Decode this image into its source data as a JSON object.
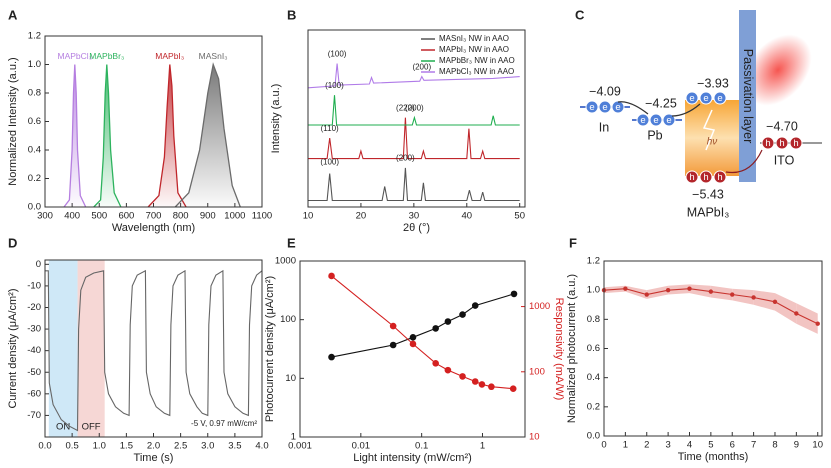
{
  "chart_data": [
    {
      "type": "area",
      "panel": "A",
      "xlabel": "Wavelength (nm)",
      "ylabel": "Normalized Intensity (a.u.)",
      "xlim": [
        300,
        1100
      ],
      "xticks": [
        300,
        400,
        500,
        600,
        700,
        800,
        900,
        1000,
        1100
      ],
      "ylim": [
        0,
        1.2
      ],
      "yticks": [
        {
          "value": 0,
          "label": "0.0"
        },
        0.2,
        0.4,
        0.6,
        0.8,
        {
          "value": 1,
          "label": "1.0"
        },
        1.2
      ],
      "legend": "at-peak",
      "series": [
        {
          "name": "MAPbCl₃",
          "color": "#b57ee0",
          "x": [
            370,
            390,
            400,
            405,
            410,
            415,
            420,
            430,
            450
          ],
          "values": [
            0,
            0.05,
            0.4,
            0.8,
            1.0,
            0.8,
            0.4,
            0.08,
            0
          ]
        },
        {
          "name": "MAPbBr₃",
          "color": "#2db35e",
          "x": [
            480,
            505,
            515,
            522,
            528,
            534,
            542,
            555,
            580
          ],
          "values": [
            0,
            0.05,
            0.35,
            0.8,
            1.0,
            0.8,
            0.4,
            0.1,
            0
          ]
        },
        {
          "name": "MAPbI₃",
          "color": "#c0262b",
          "x": [
            680,
            720,
            740,
            750,
            760,
            768,
            775,
            790,
            820
          ],
          "values": [
            0,
            0.08,
            0.35,
            0.7,
            1.0,
            0.85,
            0.5,
            0.1,
            0
          ]
        },
        {
          "name": "MASnI₃",
          "color": "#6b6b6b",
          "x": [
            780,
            830,
            870,
            900,
            920,
            940,
            960,
            990,
            1020
          ],
          "values": [
            0,
            0.1,
            0.4,
            0.8,
            1.0,
            0.9,
            0.55,
            0.15,
            0
          ]
        }
      ]
    },
    {
      "type": "line",
      "panel": "B",
      "xlabel": "2θ (°)",
      "ylabel": "Intensity (a.u.)",
      "xlim": [
        10,
        51
      ],
      "xticks": [
        10,
        20,
        30,
        40,
        50
      ],
      "ylim": [
        0,
        9.5
      ],
      "legend": "top-right",
      "series": [
        {
          "name": "MASnI₃ NW in AAO",
          "color": "#555555",
          "x": [
            10,
            13.6,
            14.1,
            14.6,
            24,
            24.5,
            25,
            28,
            28.4,
            28.8,
            31.4,
            31.8,
            32.2,
            40,
            40.5,
            41,
            42.6,
            43,
            43.4,
            50
          ],
          "values": [
            0.35,
            0.35,
            1.8,
            0.35,
            0.35,
            1.1,
            0.35,
            0.35,
            2.1,
            0.35,
            0.35,
            1.3,
            0.35,
            0.35,
            0.9,
            0.35,
            0.35,
            0.8,
            0.35,
            0.35
          ]
        },
        {
          "name": "MAPbI₃ NW in AAO",
          "color": "#c0262b",
          "x": [
            10,
            13.6,
            14.1,
            14.6,
            19.6,
            20,
            20.4,
            28,
            28.4,
            28.8,
            31.4,
            31.8,
            32.2,
            40,
            40.4,
            40.8,
            42.6,
            43,
            43.4,
            50
          ],
          "values": [
            2.6,
            2.6,
            3.7,
            2.6,
            2.6,
            3.0,
            2.6,
            2.6,
            4.8,
            2.6,
            2.6,
            3.0,
            2.6,
            2.6,
            4.2,
            2.6,
            2.6,
            3.0,
            2.6,
            2.6
          ]
        },
        {
          "name": "MAPbBr₃ NW in AAO",
          "color": "#1fae4f",
          "x": [
            10,
            14.6,
            15,
            15.4,
            29.7,
            30.1,
            30.5,
            44.6,
            45,
            45.4,
            50
          ],
          "values": [
            4.4,
            4.4,
            6.0,
            4.4,
            4.4,
            4.8,
            4.4,
            4.4,
            4.9,
            4.4,
            4.4
          ]
        },
        {
          "name": "MAPbCl₃ NW in AAO",
          "color": "#b07be8",
          "x": [
            10,
            15.1,
            15.5,
            15.9,
            21.6,
            22,
            22.4,
            31.1,
            31.5,
            31.9,
            45,
            50
          ],
          "values": [
            6.4,
            6.5,
            7.7,
            6.55,
            6.6,
            6.95,
            6.65,
            6.75,
            7.0,
            6.8,
            6.9,
            7.0
          ]
        }
      ],
      "annotations": [
        {
          "text": "(100)",
          "x": 15.5,
          "y": 8.2
        },
        {
          "text": "(200)",
          "x": 31.5,
          "y": 7.5
        },
        {
          "text": "(100)",
          "x": 15,
          "y": 6.5
        },
        {
          "text": "(200)",
          "x": 30.1,
          "y": 5.3
        },
        {
          "text": "(110)",
          "x": 14.1,
          "y": 4.2
        },
        {
          "text": "(220)",
          "x": 28.4,
          "y": 5.3
        },
        {
          "text": "(100)",
          "x": 14.1,
          "y": 2.4
        },
        {
          "text": "(200)",
          "x": 28.4,
          "y": 2.6
        }
      ]
    },
    {
      "type": "line",
      "panel": "D",
      "xlabel": "Time (s)",
      "ylabel": "Current density (μA/cm²)",
      "xlim": [
        0,
        4
      ],
      "xticks": [
        {
          "value": 0,
          "label": "0.0"
        },
        0.5,
        {
          "value": 1,
          "label": "1.0"
        },
        1.5,
        {
          "value": 2,
          "label": "2.0"
        },
        2.5,
        {
          "value": 3,
          "label": "3.0"
        },
        3.5,
        {
          "value": 4,
          "label": "4.0"
        }
      ],
      "ylim": [
        -80,
        2
      ],
      "yticks": [
        -70,
        -60,
        -50,
        -40,
        -30,
        -20,
        -10,
        0
      ],
      "shaded": [
        {
          "label": "ON",
          "x": [
            0.07,
            0.6
          ],
          "color": "#cfe8f7"
        },
        {
          "label": "OFF",
          "x": [
            0.6,
            1.1
          ],
          "color": "#f6d7d5"
        }
      ],
      "annotations": [
        {
          "text": "-5 V, 0.97 mW/cm²",
          "x": 3.3,
          "y": -74
        }
      ],
      "series": [
        {
          "color": "#666666",
          "x": [
            0,
            0.06,
            0.08,
            0.15,
            0.3,
            0.45,
            0.6,
            0.62,
            0.66,
            0.75,
            0.9,
            1.08,
            1.1,
            1.17,
            1.3,
            1.45,
            1.55,
            1.57,
            1.61,
            1.7,
            1.85,
            1.87,
            1.94,
            2.05,
            2.2,
            2.3,
            2.32,
            2.36,
            2.45,
            2.58,
            2.6,
            2.67,
            2.8,
            2.9,
            3.0,
            3.02,
            3.06,
            3.15,
            3.28,
            3.3,
            3.37,
            3.5,
            3.65,
            3.75,
            3.77,
            3.81,
            3.9,
            4.0
          ],
          "values": [
            -3,
            -3,
            -55,
            -65,
            -72,
            -75,
            -77,
            -30,
            -12,
            -6,
            -4,
            -3,
            -50,
            -60,
            -66,
            -69,
            -70,
            -28,
            -10,
            -5,
            -3,
            -50,
            -60,
            -66,
            -69,
            -70,
            -28,
            -10,
            -5,
            -3,
            -50,
            -60,
            -66,
            -69,
            -70,
            -28,
            -10,
            -5,
            -3,
            -50,
            -60,
            -66,
            -69,
            -70,
            -28,
            -10,
            -5,
            -3
          ]
        }
      ]
    },
    {
      "type": "line",
      "panel": "E",
      "xlabel": "Light intensity (mW/cm²)",
      "ylabel": "Photocurrent density (μA/cm²)",
      "y2label": "Responsivity (mA/W)",
      "xlog": true,
      "ylog": true,
      "y2log": true,
      "xlim": [
        0.001,
        5
      ],
      "xticks": [
        0.001,
        0.01,
        0.1,
        1
      ],
      "ylim": [
        1,
        1000
      ],
      "yticks": [
        1,
        10,
        100,
        1000
      ],
      "y2lim": [
        10,
        5000
      ],
      "y2ticks": [
        10,
        100,
        1000
      ],
      "markers": true,
      "series": [
        {
          "color": "#111111",
          "x": [
            0.0033,
            0.034,
            0.072,
            0.17,
            0.27,
            0.47,
            0.76,
            3.3
          ],
          "values": [
            23,
            37,
            50,
            71,
            93,
            122,
            174,
            275
          ]
        },
        {
          "color": "#d42020",
          "axis": "y2",
          "x": [
            0.0033,
            0.034,
            0.072,
            0.17,
            0.27,
            0.47,
            0.76,
            0.98,
            1.4,
            3.2
          ],
          "values": [
            2950,
            503,
            267,
            135,
            106,
            85,
            71,
            64,
            59,
            55
          ]
        }
      ]
    },
    {
      "type": "line",
      "panel": "F",
      "xlabel": "Time (months)",
      "ylabel": "Normalized photocurrent (a.u.)",
      "xlim": [
        0,
        10.2
      ],
      "xticks": [
        0,
        1,
        2,
        3,
        4,
        5,
        6,
        7,
        8,
        9,
        10
      ],
      "ylim": [
        0,
        1.2
      ],
      "yticks": [
        {
          "value": 0,
          "label": "0.0"
        },
        0.2,
        0.4,
        0.6,
        0.8,
        {
          "value": 1,
          "label": "1.0"
        },
        1.2
      ],
      "markers": true,
      "series": [
        {
          "color": "#c8342f",
          "band_color": "#f2c4c2",
          "x": [
            0,
            1,
            2,
            3,
            4,
            5,
            6,
            7,
            8,
            9,
            10
          ],
          "values": [
            1.0,
            1.01,
            0.97,
            1.0,
            1.01,
            0.99,
            0.97,
            0.95,
            0.92,
            0.84,
            0.77
          ],
          "errors": [
            0.02,
            0.02,
            0.03,
            0.03,
            0.03,
            0.04,
            0.04,
            0.05,
            0.06,
            0.07,
            0.07
          ]
        }
      ]
    }
  ],
  "diagram": {
    "panel": "C",
    "electron": "e",
    "hole": "h",
    "photon": "hν",
    "passivation": "Passivation layer",
    "in": {
      "energy": "−4.09",
      "name": "In"
    },
    "pb": {
      "energy": "−4.25",
      "name": "Pb"
    },
    "cb": {
      "energy": "−3.93"
    },
    "vb": {
      "energy": "−5.43"
    },
    "absorber": "MAPbI₃",
    "ito": {
      "energy": "−4.70",
      "name": "ITO"
    }
  }
}
